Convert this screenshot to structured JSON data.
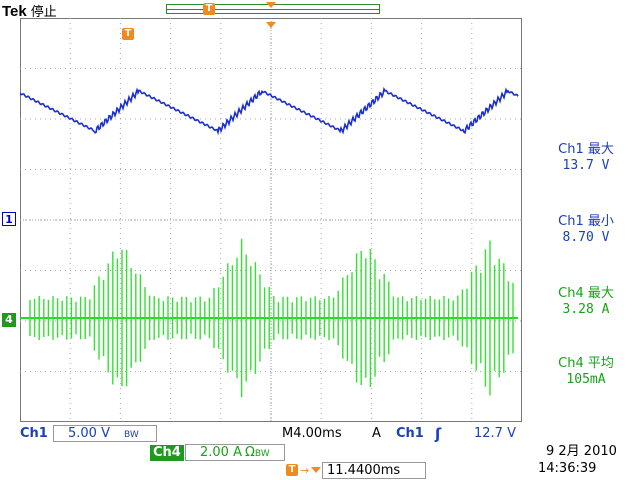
{
  "header": {
    "brand": "Tek",
    "status": "停止",
    "trigger_marker": "T"
  },
  "channels": {
    "ch1": {
      "marker": "1",
      "color": "#1a3fb8",
      "scale": "5.00 V",
      "bw": "BW"
    },
    "ch4": {
      "marker": "4",
      "color": "#17a317",
      "label": "Ch4",
      "scale": "2.00 A",
      "unit_suffix": "Ω",
      "bw": "BW"
    }
  },
  "measurements": [
    {
      "label": "Ch1 最大",
      "value": "13.7 V",
      "color": "blue"
    },
    {
      "label": "Ch1 最小",
      "value": "8.70 V",
      "color": "blue"
    },
    {
      "label": "Ch4 最大",
      "value": "3.28 A",
      "color": "green"
    },
    {
      "label": "Ch4 平均",
      "value": "105mA",
      "color": "green"
    }
  ],
  "bottom": {
    "ch1_label": "Ch1",
    "ch1_scale": "5.00 V",
    "timebase_prefix": "M",
    "timebase": "4.00ms",
    "trigger_mode": "A",
    "trigger_source": "Ch1",
    "trigger_level": "12.7 V",
    "trigger_position": "11.4400ms",
    "date": "9 2月  2010",
    "time": "14:36:39"
  }
}
